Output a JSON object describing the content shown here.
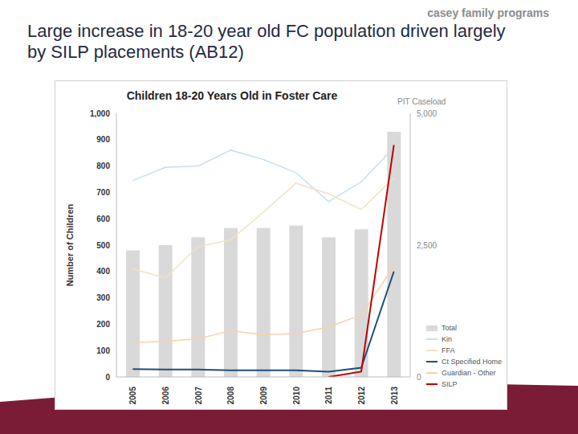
{
  "slide_title": "Large increase in 18-20 year old FC population driven largely by SILP placements (AB12)",
  "logo": "casey family programs",
  "chart_data": {
    "type": "combo",
    "title": "Children 18-20 Years Old in Foster Care",
    "y_label": "Number of Children",
    "y2_label": "PIT Caseload",
    "categories": [
      "2005",
      "2006",
      "2007",
      "2008",
      "2009",
      "2010",
      "2011",
      "2012",
      "2013"
    ],
    "ylim": [
      0,
      1000
    ],
    "yticks": [
      0,
      100,
      200,
      300,
      400,
      500,
      600,
      700,
      800,
      900,
      {
        "value": 1000,
        "label": "1,000"
      }
    ],
    "y2lim": [
      0,
      5000
    ],
    "y2ticks": [
      0,
      {
        "value": 2500,
        "label": "2,500"
      },
      {
        "value": 5000,
        "label": "5,000"
      }
    ],
    "grid": false,
    "series": [
      {
        "name": "Total",
        "type": "bar",
        "axis": "y2",
        "color": "#d9d9d9",
        "values": [
          2400,
          2500,
          2650,
          2825,
          2825,
          2875,
          2650,
          2800,
          4650
        ]
      },
      {
        "name": "Kin",
        "type": "line",
        "color": "#c5dff0",
        "values": [
          745,
          795,
          800,
          860,
          825,
          775,
          665,
          740,
          870
        ]
      },
      {
        "name": "FFA",
        "type": "line",
        "color": "#f1e2c2",
        "values": [
          410,
          375,
          495,
          520,
          625,
          735,
          695,
          635,
          755
        ]
      },
      {
        "name": "Ct Specified Home",
        "type": "line",
        "color": "#1f4e79",
        "values": [
          30,
          28,
          28,
          25,
          25,
          25,
          20,
          35,
          400
        ]
      },
      {
        "name": "Guardian - Other",
        "type": "line",
        "color": "#f9d2a8",
        "values": [
          130,
          135,
          145,
          175,
          160,
          165,
          190,
          235,
          420
        ]
      },
      {
        "name": "SILP",
        "type": "line",
        "color": "#c00000",
        "values": [
          null,
          null,
          null,
          null,
          null,
          null,
          0,
          20,
          880
        ]
      }
    ]
  }
}
